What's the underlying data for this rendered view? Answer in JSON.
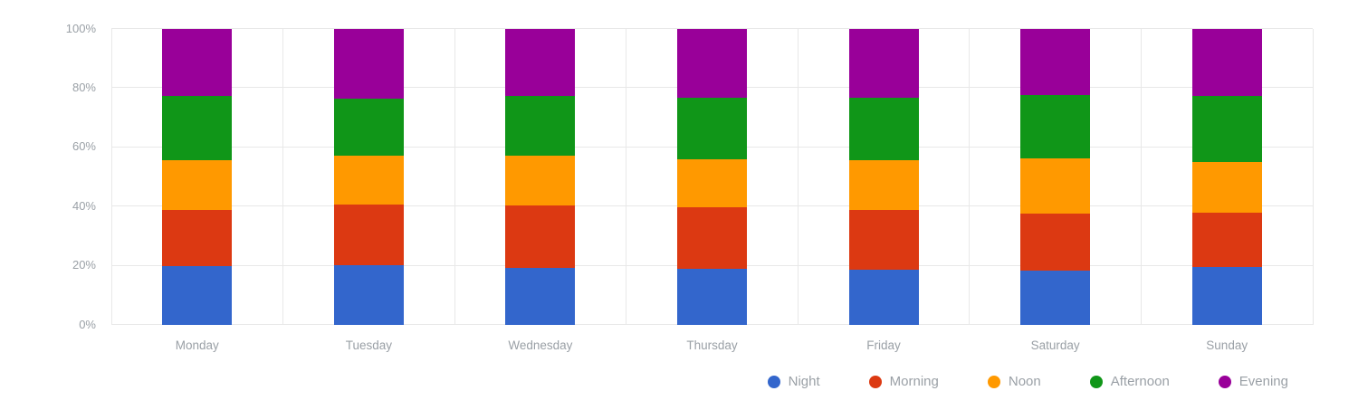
{
  "page": {
    "background": "#ffffff"
  },
  "chart": {
    "grid_color": "#e8e8e8",
    "axis_label_color": "#9aa0a6",
    "legend_label_color": "#9aa0a6"
  },
  "chart_data": {
    "type": "bar",
    "stacked": true,
    "percent_stacked": true,
    "title": "",
    "xlabel": "",
    "ylabel": "",
    "ylim": [
      0,
      100
    ],
    "y_ticks": [
      "0%",
      "20%",
      "40%",
      "60%",
      "80%",
      "100%"
    ],
    "grid": true,
    "legend_position": "bottom-right",
    "categories": [
      "Monday",
      "Tuesday",
      "Wednesday",
      "Thursday",
      "Friday",
      "Saturday",
      "Sunday"
    ],
    "series": [
      {
        "name": "Night",
        "color": "#3366CC",
        "values": [
          19.6,
          20.0,
          19.0,
          18.8,
          18.4,
          18.1,
          19.3
        ]
      },
      {
        "name": "Morning",
        "color": "#DC3912",
        "values": [
          19.0,
          20.4,
          21.3,
          20.9,
          20.4,
          19.3,
          18.6
        ]
      },
      {
        "name": "Noon",
        "color": "#FF9900",
        "values": [
          17.0,
          16.7,
          16.6,
          16.0,
          16.8,
          18.8,
          17.1
        ]
      },
      {
        "name": "Afternoon",
        "color": "#109618",
        "values": [
          21.6,
          19.3,
          20.3,
          20.8,
          20.9,
          21.2,
          22.1
        ]
      },
      {
        "name": "Evening",
        "color": "#990099",
        "values": [
          22.8,
          23.6,
          22.8,
          23.5,
          23.5,
          22.6,
          22.9
        ]
      }
    ]
  }
}
